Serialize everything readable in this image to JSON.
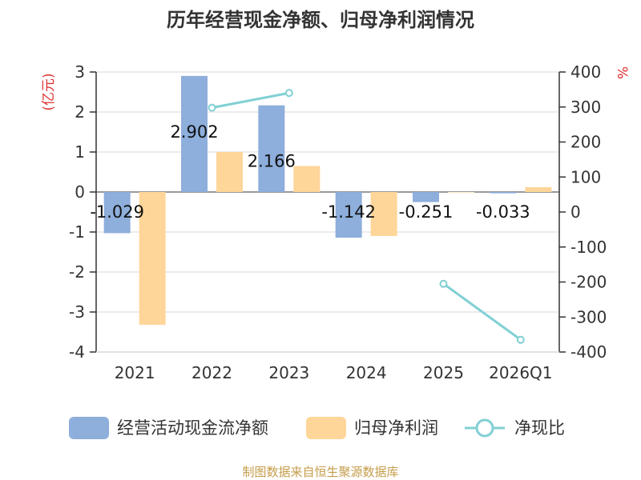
{
  "chart_data": {
    "type": "bar+line",
    "title": "历年经营现金净额、归母净利润情况",
    "categories": [
      "2021",
      "2022",
      "2023",
      "2024",
      "2025",
      "2026Q1"
    ],
    "left_axis": {
      "unit": "(亿元)",
      "min": -4,
      "max": 3,
      "ticks": [
        "3",
        "2",
        "1",
        "0",
        "-1",
        "-2",
        "-3",
        "-4"
      ]
    },
    "right_axis": {
      "unit": "%",
      "min": -400,
      "max": 400,
      "ticks": [
        "400",
        "300",
        "200",
        "100",
        "0",
        "-100",
        "-200",
        "-300",
        "-400"
      ]
    },
    "series": [
      {
        "name": "经营活动现金流净额",
        "kind": "bar",
        "axis": "left",
        "values": [
          -1.029,
          2.902,
          2.166,
          -1.142,
          -0.251,
          -0.033
        ],
        "labels": [
          "-1.029",
          "2.902",
          "2.166",
          "-1.142",
          "-0.251",
          "-0.033"
        ]
      },
      {
        "name": "归母净利润",
        "kind": "bar",
        "axis": "left",
        "values": [
          -3.32,
          1.0,
          0.65,
          -1.1,
          -0.01,
          0.12
        ]
      },
      {
        "name": "净现比",
        "kind": "line",
        "axis": "right",
        "values": [
          null,
          298,
          340,
          null,
          -205,
          -365
        ]
      }
    ],
    "colors": {
      "cash_flow": "#8eaedb",
      "net_profit": "#ffd699",
      "ratio": "#80d0d4",
      "unit_red": "#e03030",
      "source": "#c59c4a",
      "axis": "#333333",
      "grid": "#d9d9d9"
    },
    "source": "制图数据来自恒生聚源数据库"
  }
}
